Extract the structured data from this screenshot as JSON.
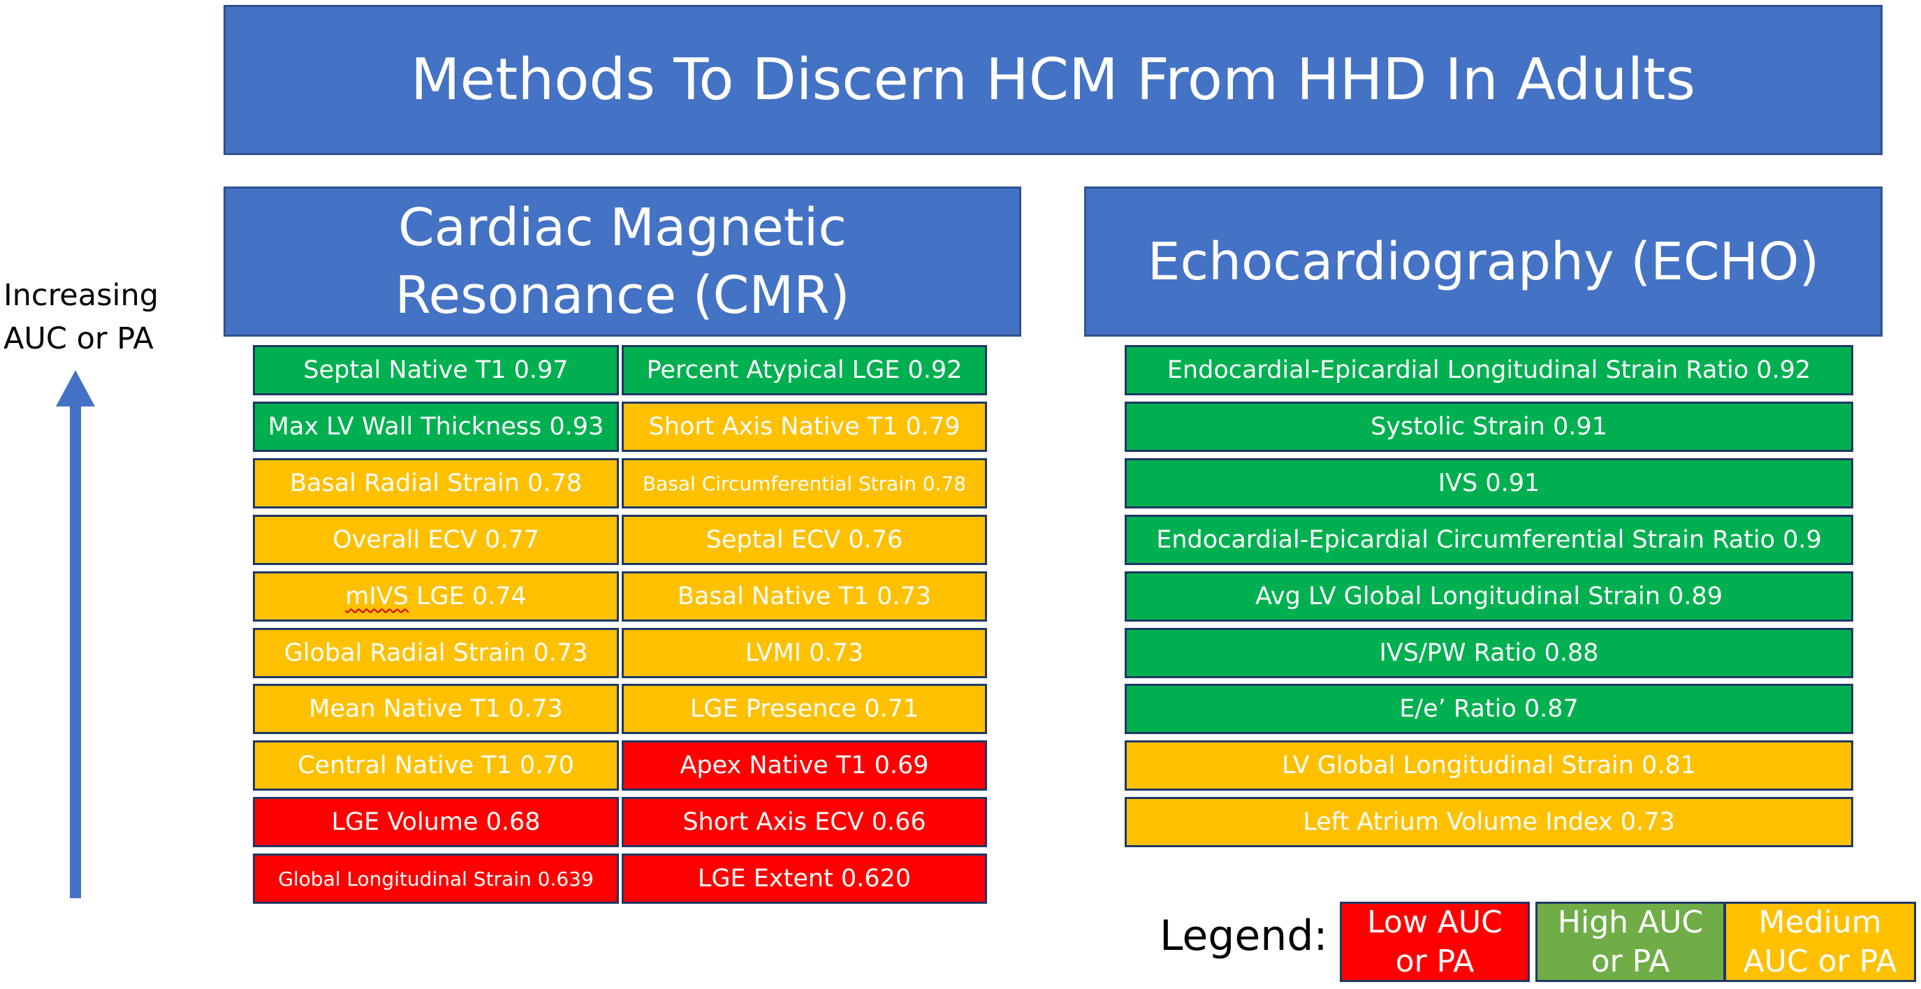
{
  "title": "Methods To Discern HCM From HHD In Adults",
  "cmr_header": {
    "line1": "Cardiac Magnetic",
    "line2": "Resonance (CMR)"
  },
  "echo_header": "Echocardiography (ECHO)",
  "axis_label": {
    "line1": "Increasing",
    "line2": "AUC or PA"
  },
  "colors": {
    "banner": "#4472C4",
    "high": "#00B050",
    "medium": "#FFC000",
    "low": "#FF0000",
    "legend_high": "#70AD47"
  },
  "cmr_left": [
    {
      "text": "Septal Native T1 0.97",
      "level": "high"
    },
    {
      "text": "Max LV Wall Thickness 0.93",
      "level": "high"
    },
    {
      "text": "Basal Radial Strain 0.78",
      "level": "medium"
    },
    {
      "text": "Overall ECV 0.77",
      "level": "medium"
    },
    {
      "text": " LGE 0.74",
      "prefix": "mIVS",
      "level": "medium"
    },
    {
      "text": "Global Radial Strain 0.73",
      "level": "medium"
    },
    {
      "text": "Mean Native T1 0.73",
      "level": "medium"
    },
    {
      "text": "Central Native T1 0.70",
      "level": "medium"
    },
    {
      "text": "LGE Volume 0.68",
      "level": "low"
    },
    {
      "text": "Global Longitudinal Strain 0.639",
      "level": "low",
      "small": true
    }
  ],
  "cmr_right": [
    {
      "text": "Percent Atypical LGE 0.92",
      "level": "high"
    },
    {
      "text": "Short Axis Native T1 0.79",
      "level": "medium"
    },
    {
      "text": "Basal Circumferential Strain 0.78",
      "level": "medium",
      "small": true
    },
    {
      "text": "Septal ECV 0.76",
      "level": "medium"
    },
    {
      "text": "Basal Native T1 0.73",
      "level": "medium"
    },
    {
      "text": "LVMI 0.73",
      "level": "medium"
    },
    {
      "text": "LGE Presence 0.71",
      "level": "medium"
    },
    {
      "text": "Apex Native T1 0.69",
      "level": "low"
    },
    {
      "text": "Short Axis ECV 0.66",
      "level": "low"
    },
    {
      "text": "LGE Extent 0.620",
      "level": "low"
    }
  ],
  "echo": [
    {
      "text": "Endocardial-Epicardial Longitudinal Strain Ratio 0.92",
      "level": "high"
    },
    {
      "text": "Systolic Strain 0.91",
      "level": "high"
    },
    {
      "text": "IVS 0.91",
      "level": "high"
    },
    {
      "text": "Endocardial-Epicardial Circumferential Strain Ratio 0.9",
      "level": "high"
    },
    {
      "text": "Avg LV Global Longitudinal Strain 0.89",
      "level": "high"
    },
    {
      "text": "IVS/PW Ratio 0.88",
      "level": "high"
    },
    {
      "text": "E/e’ Ratio 0.87",
      "level": "high"
    },
    {
      "text": "LV Global Longitudinal Strain 0.81",
      "level": "medium"
    },
    {
      "text": "Left Atrium Volume Index 0.73",
      "level": "medium"
    }
  ],
  "legend": {
    "label": "Legend:",
    "low": {
      "line1": "Low AUC",
      "line2": "or PA"
    },
    "high": {
      "line1": "High AUC",
      "line2": "or PA"
    },
    "medium": {
      "line1": "Medium",
      "line2": "AUC or PA"
    }
  }
}
